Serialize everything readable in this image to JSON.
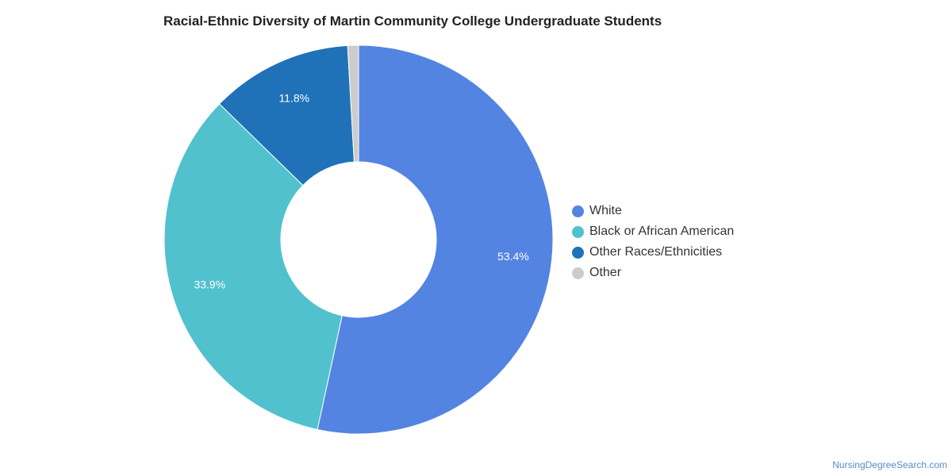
{
  "chart_data": {
    "type": "pie",
    "title": "Racial-Ethnic Diversity of Martin Community College Undergraduate Students",
    "categories": [
      "White",
      "Black or African American",
      "Other Races/Ethnicities",
      "Other"
    ],
    "values": [
      53.4,
      33.9,
      11.8,
      0.9
    ],
    "value_labels": [
      "53.4%",
      "33.9%",
      "11.8%",
      ""
    ],
    "colors": [
      "#5484e2",
      "#51c1ce",
      "#1f72b8",
      "#cccccc"
    ],
    "donut": true,
    "legend_position": "right"
  },
  "watermark": "NursingDegreeSearch.com"
}
